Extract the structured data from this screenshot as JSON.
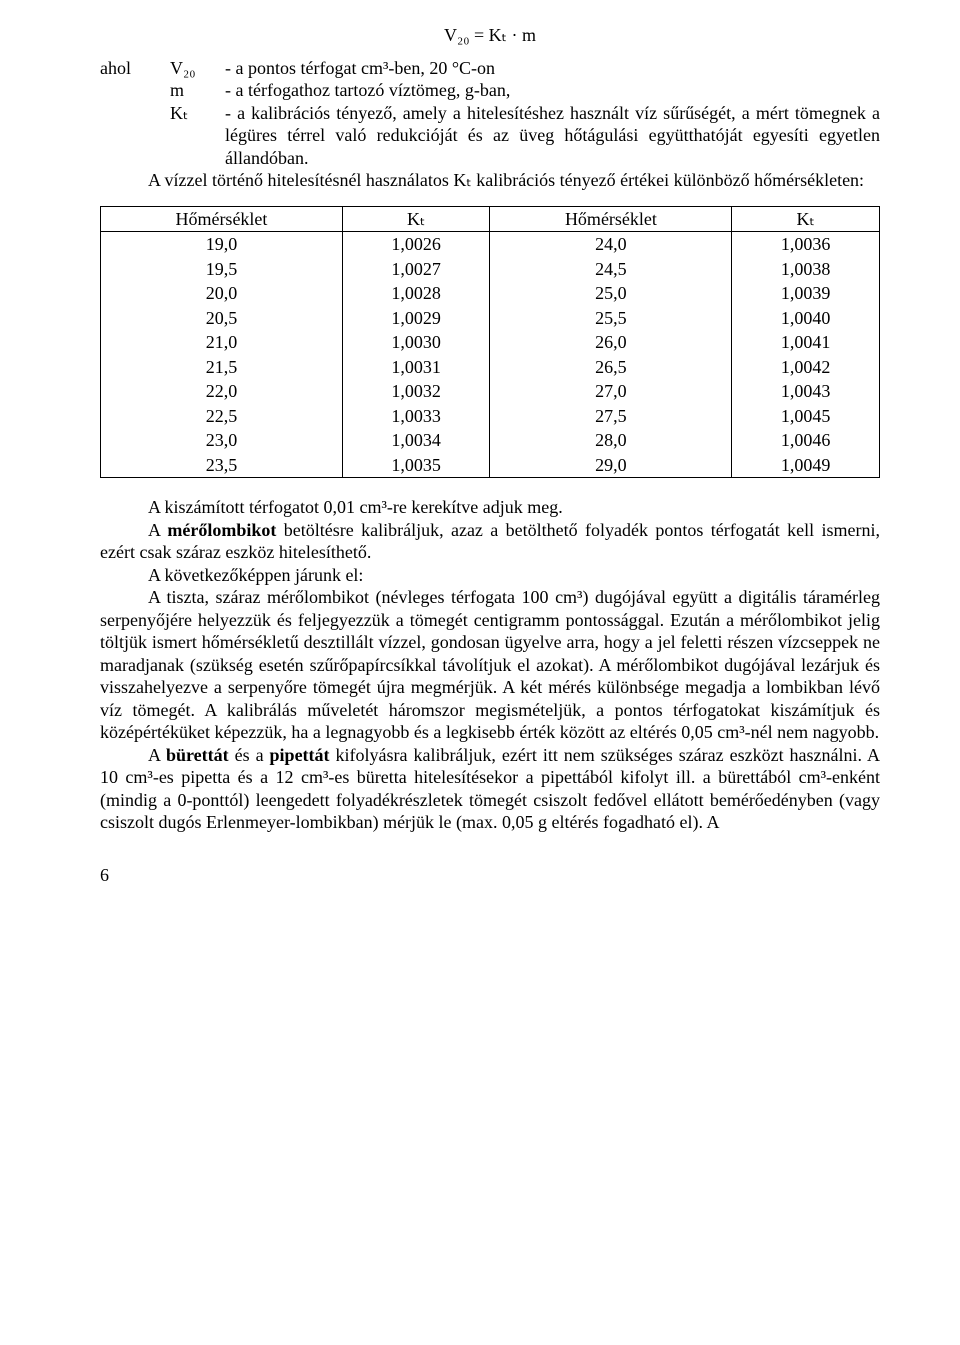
{
  "formula": "V₂₀ = Kₜ · m",
  "definitions": {
    "lead": "ahol",
    "items": [
      {
        "sym": "V₂₀",
        "text": "- a pontos térfogat cm³-ben, 20 °C-on"
      },
      {
        "sym": "m",
        "text": "- a térfogathoz tartozó víztömeg, g-ban,"
      },
      {
        "sym": "Kₜ",
        "text": "- a kalibrációs tényező, amely a hitelesítéshez használt víz sűrűségét, a mért tömegnek a légüres térrel való redukcióját és az üveg hőtágulási együtthatóját egyesíti egyetlen állandóban."
      }
    ]
  },
  "para1": "A vízzel történő hitelesítésnél használatos Kₜ kalibrációs tényező értékei különböző hőmérsékleten:",
  "table": {
    "headers": [
      "Hőmérséklet",
      "Kₜ",
      "Hőmérséklet",
      "Kₜ"
    ],
    "rows": [
      [
        "19,0",
        "1,0026",
        "24,0",
        "1,0036"
      ],
      [
        "19,5",
        "1,0027",
        "24,5",
        "1,0038"
      ],
      [
        "20,0",
        "1,0028",
        "25,0",
        "1,0039"
      ],
      [
        "20,5",
        "1,0029",
        "25,5",
        "1,0040"
      ],
      [
        "21,0",
        "1,0030",
        "26,0",
        "1,0041"
      ],
      [
        "21,5",
        "1,0031",
        "26,5",
        "1,0042"
      ],
      [
        "22,0",
        "1,0032",
        "27,0",
        "1,0043"
      ],
      [
        "22,5",
        "1,0033",
        "27,5",
        "1,0045"
      ],
      [
        "23,0",
        "1,0034",
        "28,0",
        "1,0046"
      ],
      [
        "23,5",
        "1,0035",
        "29,0",
        "1,0049"
      ]
    ]
  },
  "paras": {
    "p2": "A kiszámított térfogatot 0,01 cm³-re kerekítve adjuk meg.",
    "p3a": "A ",
    "p3b": "mérőlombikot",
    "p3c": " betöltésre kalibráljuk, azaz a betölthető folyadék pontos térfogatát kell ismerni, ezért csak száraz eszköz hitelesíthető.",
    "p4": "A következőképpen járunk el:",
    "p5": "A tiszta, száraz mérőlombikot (névleges térfogata 100 cm³) dugójával együtt a digitális táramérleg serpenyőjére helyezzük és feljegyezzük a tömegét centigramm pontossággal. Ezután a mérőlombikot jelig töltjük ismert hőmérsékletű desztillált vízzel, gondosan ügyelve arra, hogy a jel feletti részen vízcseppek ne maradjanak (szükség esetén szűrőpapírcsíkkal távolítjuk el azokat). A mérőlombikot dugójával lezárjuk és visszahelyezve a serpenyőre tömegét újra megmérjük. A két mérés különbsége megadja a lombikban lévő víz tömegét. A kalibrálás műveletét háromszor megismételjük, a pontos térfogatokat kiszámítjuk és középértéküket képezzük, ha a legnagyobb és a legkisebb érték között az eltérés 0,05 cm³-nél nem nagyobb.",
    "p6a": "A ",
    "p6b": "bürettát",
    "p6c": " és a ",
    "p6d": "pipettát",
    "p6e": " kifolyásra kalibráljuk, ezért itt nem szükséges száraz eszközt használni. A 10 cm³-es pipetta és a 12 cm³-es büretta hitelesítésekor a pipettából kifolyt ill. a bürettából cm³-enként (mindig a 0-ponttól) leengedett folyadékrészletek tömegét csiszolt fedővel ellátott bemérőedényben (vagy csiszolt dugós Erlenmeyer-lombikban) mérjük le (max. 0,05 g eltérés fogadható el). A"
  },
  "pageNumber": "6"
}
